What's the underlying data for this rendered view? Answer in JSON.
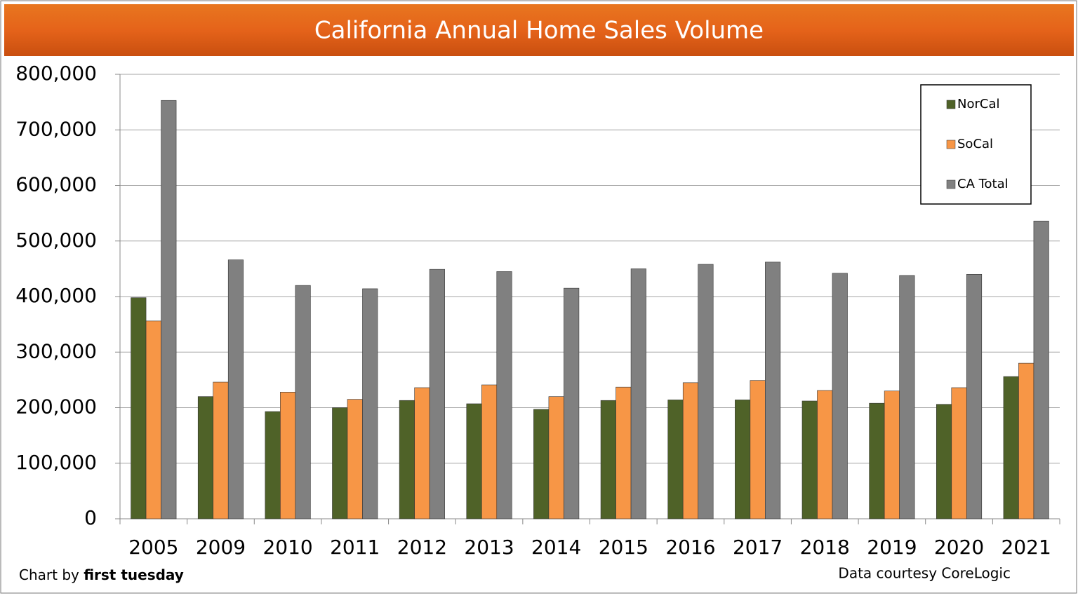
{
  "chart_data": {
    "type": "bar",
    "title": "California Annual Home Sales Volume",
    "categories": [
      "2005",
      "2009",
      "2010",
      "2011",
      "2012",
      "2013",
      "2014",
      "2015",
      "2016",
      "2017",
      "2018",
      "2019",
      "2020",
      "2021"
    ],
    "series": [
      {
        "name": "NorCal",
        "color": "#4f6228",
        "values": [
          398000,
          220000,
          193000,
          200000,
          213000,
          207000,
          197000,
          213000,
          214000,
          214000,
          212000,
          208000,
          206000,
          256000
        ]
      },
      {
        "name": "SoCal",
        "color": "#f79646",
        "values": [
          356000,
          246000,
          228000,
          215000,
          236000,
          241000,
          220000,
          237000,
          245000,
          249000,
          231000,
          230000,
          236000,
          280000
        ]
      },
      {
        "name": "CA Total",
        "color": "#808080",
        "values": [
          753000,
          466000,
          420000,
          414000,
          449000,
          445000,
          415000,
          450000,
          458000,
          462000,
          442000,
          438000,
          440000,
          536000
        ]
      }
    ],
    "ylim": [
      0,
      800000
    ],
    "yticks": [
      0,
      {
        "value": 100000,
        "label": "100,000"
      },
      {
        "value": 200000,
        "label": "200,000"
      },
      {
        "value": 300000,
        "label": "300,000"
      },
      {
        "value": 400000,
        "label": "400,000"
      },
      {
        "value": 500000,
        "label": "500,000"
      },
      {
        "value": 600000,
        "label": "600,000"
      },
      {
        "value": 700000,
        "label": "700,000"
      },
      {
        "value": 800000,
        "label": "800,000"
      }
    ],
    "grid": true,
    "legend": "top-right",
    "credit": {
      "prefix": "Chart by",
      "emphasis": "first tuesday"
    },
    "source": "Data courtesy CoreLogic"
  }
}
